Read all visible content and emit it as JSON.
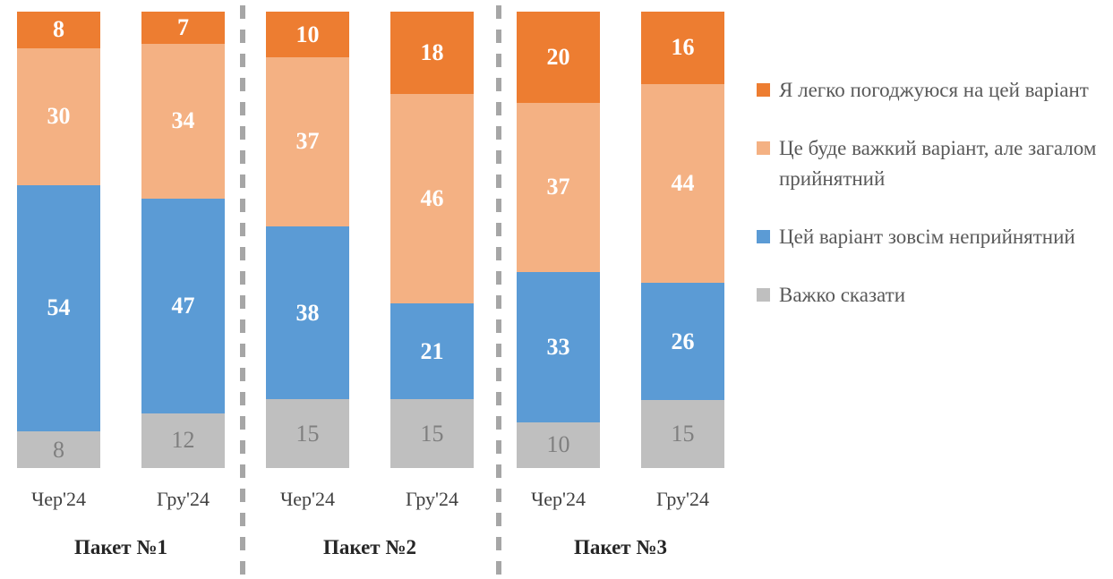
{
  "chart_data": {
    "type": "bar",
    "subtype": "100-percent-stacked-column",
    "grid": false,
    "ylim": [
      0,
      100
    ],
    "legend_position": "right",
    "groups": [
      {
        "label": "Пакет №1",
        "categories": [
          "Чер'24",
          "Гру'24"
        ]
      },
      {
        "label": "Пакет №2",
        "categories": [
          "Чер'24",
          "Гру'24"
        ]
      },
      {
        "label": "Пакет №3",
        "categories": [
          "Чер'24",
          "Гру'24"
        ]
      }
    ],
    "series": [
      {
        "name": "Важко сказати",
        "color": "#BFBFBF",
        "label_color": "#7F7F7F",
        "label_bold": false,
        "values": [
          8,
          12,
          15,
          15,
          10,
          15
        ]
      },
      {
        "name": "Цей варіант зовсім неприйнятний",
        "color": "#5B9BD5",
        "label_color": "#FFFFFF",
        "label_bold": true,
        "values": [
          54,
          47,
          38,
          21,
          33,
          26
        ]
      },
      {
        "name": "Це буде важкий варіант, але загалом прийнятний",
        "color": "#F4B183",
        "label_color": "#FFFFFF",
        "label_bold": true,
        "values": [
          30,
          34,
          37,
          46,
          37,
          44
        ]
      },
      {
        "name": "Я легко погоджуюся на цей варіант",
        "color": "#ED7D31",
        "label_color": "#FFFFFF",
        "label_bold": true,
        "values": [
          8,
          7,
          10,
          18,
          20,
          16
        ]
      }
    ]
  },
  "legend": {
    "items": [
      {
        "label": "Я легко погоджуюся на цей варіант",
        "color": "#ED7D31"
      },
      {
        "label": "Це буде важкий варіант, але загалом прийнятний",
        "color": "#F4B183"
      },
      {
        "label": "Цей варіант зовсім неприйнятний",
        "color": "#5B9BD5"
      },
      {
        "label": "Важко сказати",
        "color": "#BFBFBF"
      }
    ]
  },
  "divider_color": "#A6A6A6"
}
